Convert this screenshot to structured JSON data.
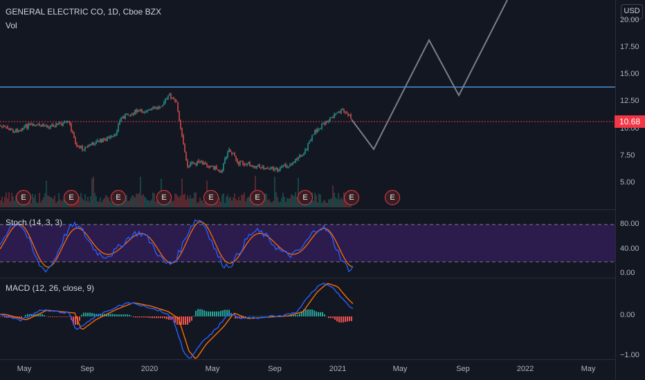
{
  "header": {
    "symbol_line": "GENERAL ELECTRIC CO, 1D, Cboe BZX",
    "volume_label": "Vol"
  },
  "currency_button": "USD",
  "price_axis": {
    "labels": [
      "20.00",
      "17.50",
      "15.00",
      "12.50",
      "10.00",
      "7.50",
      "5.00"
    ]
  },
  "last_price": "10.68",
  "earnings_marker": "E",
  "stoch": {
    "label": "Stoch (14, 3, 3)",
    "axis_labels": [
      "80.00",
      "40.00",
      "0.00"
    ]
  },
  "macd": {
    "label": "MACD (12, 26, close, 9)",
    "axis_labels": [
      "0.00",
      "−1.00"
    ]
  },
  "time_axis": {
    "labels": [
      "May",
      "Sep",
      "2020",
      "May",
      "Sep",
      "2021",
      "May",
      "Sep",
      "2022",
      "May"
    ]
  },
  "colors": {
    "background": "#131722",
    "up": "#26a69a",
    "down": "#ef5350",
    "horizontal_line": "#2196f3",
    "price_line": "#f23645",
    "stoch_fill": "#2c1b4d",
    "stoch_k": "#2962ff",
    "stoch_d": "#ff6d00",
    "macd_line": "#2962ff",
    "signal_line": "#ff6d00"
  }
}
